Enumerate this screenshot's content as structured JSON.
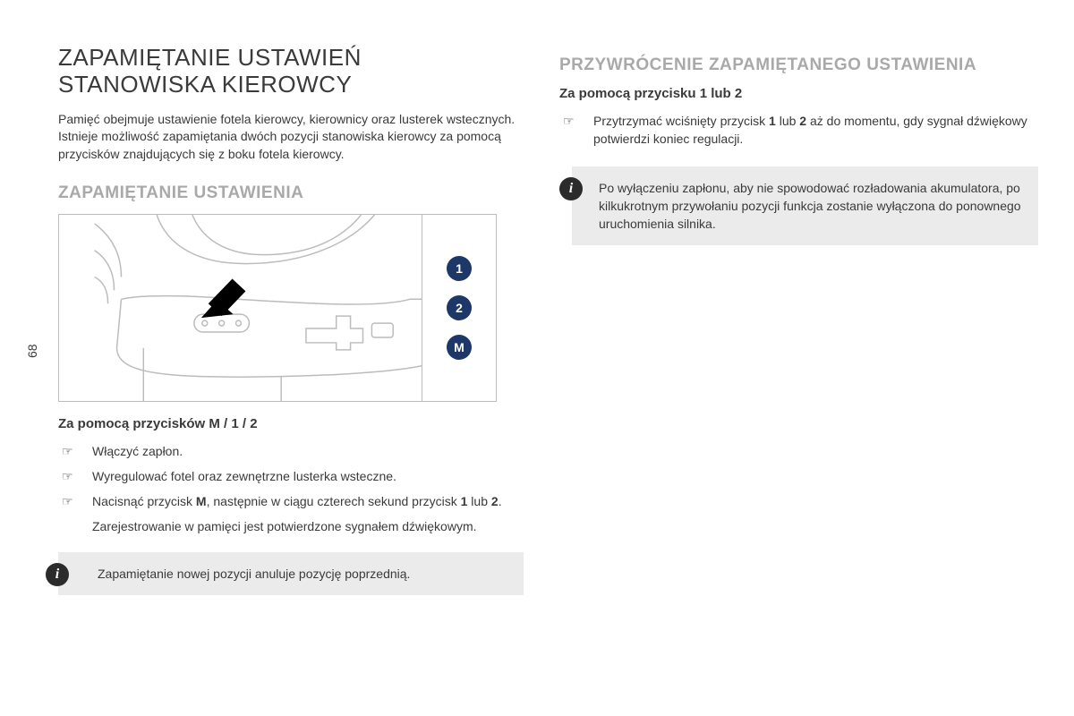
{
  "page_number": "68",
  "colors": {
    "text": "#3a3a3a",
    "heading_grey": "#a9a9a9",
    "note_bg": "#ebebeb",
    "button_bg": "#1d3768",
    "button_fg": "#ffffff",
    "line_art": "#bcbcbc",
    "info_icon_bg": "#2b2b2b"
  },
  "typography": {
    "h1_fontsize": 26,
    "h2_fontsize": 19,
    "h3_fontsize": 15,
    "body_fontsize": 14
  },
  "left": {
    "title": "ZAPAMIĘTANIE USTAWIEŃ STANOWISKA KIEROWCY",
    "intro": "Pamięć obejmuje ustawienie fotela kierowcy, kierownicy oraz lusterek wstecznych. Istnieje możliwość zapamiętania dwóch pozycji stanowiska kierowcy za pomocą przycisków znajdujących się z boku fotela kierowcy.",
    "section_heading": "ZAPAMIĘTANIE USTAWIENIA",
    "figure": {
      "buttons": [
        "1",
        "2",
        "M"
      ],
      "button_color": "#1d3768",
      "arrow_color": "#000000"
    },
    "sub_heading": "Za pomocą przycisków M / 1 / 2",
    "steps": [
      "Włączyć zapłon.",
      "Wyregulować fotel oraz zewnętrzne lusterka wsteczne.",
      "Nacisnąć przycisk <b>M</b>, następnie w ciągu czterech sekund przycisk <b>1</b> lub <b>2</b>.",
      "Zarejestrowanie w pamięci jest potwierdzone sygnałem dźwiękowym."
    ],
    "note": "Zapamiętanie nowej pozycji anuluje pozycję poprzednią."
  },
  "right": {
    "section_heading": "PRZYWRÓCENIE ZAPAMIĘTANEGO USTAWIENIA",
    "sub_heading": "Za pomocą przycisku 1 lub 2",
    "steps": [
      "Przytrzymać wciśnięty przycisk <b>1</b> lub <b>2</b> aż do momentu, gdy sygnał dźwiękowy potwierdzi koniec regulacji."
    ],
    "note": "Po wyłączeniu zapłonu, aby nie spowodować rozładowania akumulatora, po kilkukrotnym przywołaniu pozycji funkcja zostanie wyłączona do ponownego uruchomienia silnika."
  }
}
